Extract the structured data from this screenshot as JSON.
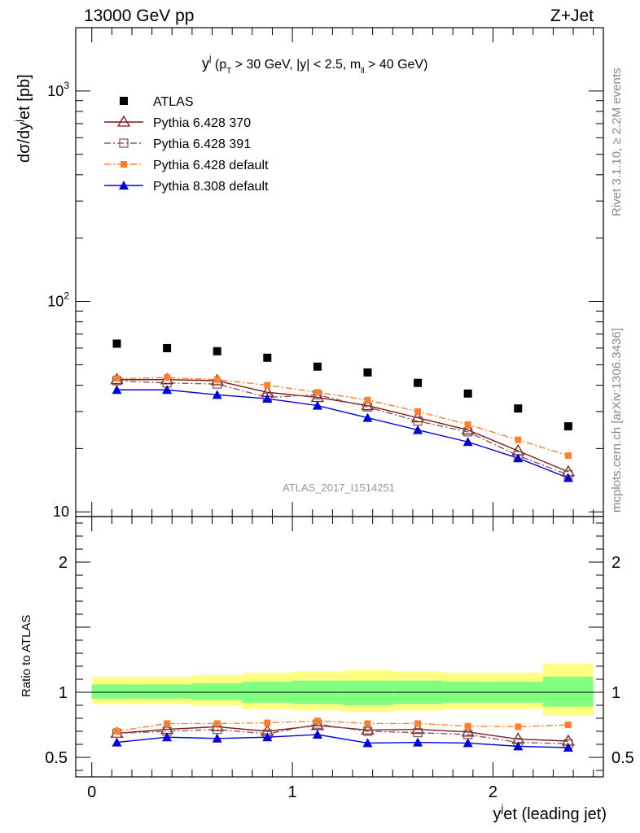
{
  "header": {
    "left": "13000 GeV pp",
    "right": "Z+Jet"
  },
  "side_labels": {
    "rivet": "Rivet 3.1.10, ≥ 2.2M events",
    "mcplots": "mcplots.cern.ch [arXiv:1306.3436]"
  },
  "chart_data": [
    {
      "type": "scatter",
      "title": "y^j (p_T > 30 GeV, |y| < 2.5, m_ll > 40 GeV)",
      "title_parts": {
        "y": "y",
        "j": "j",
        "open": " (p",
        "T": "T",
        "mid": " > 30 GeV, |y| < 2.5, m",
        "ll": "ll",
        "close": " > 40 GeV)"
      },
      "watermark": "ATLAS_2017_I1514251",
      "ylabel": "dσ/dy^jet [pb]",
      "ylabel_parts": {
        "a": "dσ/dy",
        "j": "j",
        "b": "et [pb]"
      },
      "yscale": "log",
      "ylim": [
        9.5,
        2000
      ],
      "xlim": [
        -0.08,
        2.55
      ],
      "ytick_labels": [
        {
          "v": 10,
          "base": "10",
          "exp": ""
        },
        {
          "v": 100,
          "base": "10",
          "exp": "2"
        },
        {
          "v": 1000,
          "base": "10",
          "exp": "3"
        }
      ],
      "legend_position": "top-left",
      "x": [
        0.125,
        0.375,
        0.625,
        0.875,
        1.125,
        1.375,
        1.625,
        1.875,
        2.125,
        2.375
      ],
      "bin_edges": [
        0,
        0.25,
        0.5,
        0.75,
        1.0,
        1.25,
        1.5,
        1.75,
        2.0,
        2.25,
        2.5
      ],
      "series": [
        {
          "name": "ATLAS",
          "style": "data",
          "color": "#000000",
          "values": [
            63,
            60,
            58,
            54,
            49,
            46,
            41,
            36.5,
            31,
            25.5
          ]
        },
        {
          "name": "Pythia 6.428 370",
          "style": "open-triangle",
          "color": "#7f1a1a",
          "values": [
            42.5,
            42.5,
            42,
            37,
            35,
            32,
            28,
            24.5,
            19.5,
            15.5
          ]
        },
        {
          "name": "Pythia 6.428 391",
          "style": "open-square",
          "color": "#8a5a5a",
          "values": [
            42,
            41,
            40.5,
            35,
            36,
            31.5,
            27,
            24,
            18.5,
            15
          ]
        },
        {
          "name": "Pythia 6.428 default",
          "style": "filled-square",
          "color": "#ff7f2a",
          "values": [
            43,
            43.5,
            42.5,
            40,
            37,
            34,
            30,
            26,
            22,
            18.5
          ]
        },
        {
          "name": "Pythia 8.308 default",
          "style": "filled-triangle",
          "color": "#0000dd",
          "values": [
            38,
            38,
            36,
            34.5,
            32,
            28,
            24.5,
            21.5,
            18,
            14.5
          ]
        }
      ]
    },
    {
      "type": "scatter",
      "xlabel": "y^jet (leading jet)",
      "xlabel_parts": {
        "y": "y",
        "j": "j",
        "rest": "et (leading jet)"
      },
      "ylabel": "Ratio to ATLAS",
      "xlim": [
        -0.08,
        2.55
      ],
      "ylim": [
        0.35,
        2.35
      ],
      "xticks": [
        "0",
        "1",
        "2"
      ],
      "yticks": [
        "0.5",
        "1",
        "2"
      ],
      "x": [
        0.125,
        0.375,
        0.625,
        0.875,
        1.125,
        1.375,
        1.625,
        1.875,
        2.125,
        2.375
      ],
      "bands": {
        "outer_color": "#ffff80",
        "inner_color": "#80ff80",
        "outer_lo": [
          0.91,
          0.91,
          0.9,
          0.87,
          0.86,
          0.85,
          0.86,
          0.87,
          0.87,
          0.82
        ],
        "outer_hi": [
          1.12,
          1.12,
          1.13,
          1.15,
          1.16,
          1.17,
          1.16,
          1.15,
          1.15,
          1.22
        ],
        "inner_lo": [
          0.95,
          0.95,
          0.94,
          0.92,
          0.91,
          0.9,
          0.91,
          0.92,
          0.92,
          0.89
        ],
        "inner_hi": [
          1.06,
          1.06,
          1.07,
          1.08,
          1.09,
          1.09,
          1.09,
          1.08,
          1.08,
          1.12
        ]
      },
      "series": [
        {
          "name": "Pythia 6.428 370",
          "values": [
            0.685,
            0.715,
            0.735,
            0.7,
            0.745,
            0.71,
            0.715,
            0.695,
            0.64,
            0.625
          ]
        },
        {
          "name": "Pythia 6.428 391",
          "values": [
            0.685,
            0.7,
            0.715,
            0.68,
            0.755,
            0.7,
            0.69,
            0.675,
            0.615,
            0.605
          ]
        },
        {
          "name": "Pythia 6.428 default",
          "values": [
            0.7,
            0.76,
            0.76,
            0.765,
            0.78,
            0.76,
            0.76,
            0.74,
            0.735,
            0.75
          ]
        },
        {
          "name": "Pythia 8.308 default",
          "values": [
            0.615,
            0.655,
            0.645,
            0.655,
            0.675,
            0.61,
            0.615,
            0.61,
            0.585,
            0.575
          ]
        }
      ]
    }
  ]
}
